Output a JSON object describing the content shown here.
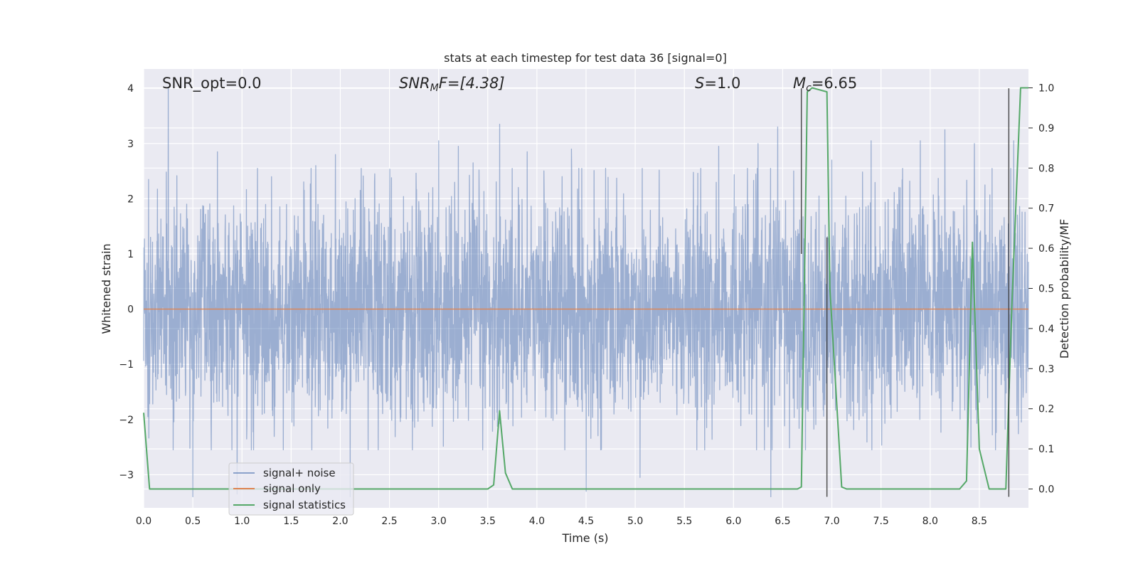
{
  "chart_data": {
    "type": "line",
    "title": "stats at each timestep for test data 36 [signal=0]",
    "xlabel": "Time (s)",
    "ylabel": "Whitened strain",
    "y2label": "Detection probability/MF",
    "xlim": [
      0.0,
      9.0
    ],
    "ylim": [
      -3.6,
      4.35
    ],
    "y2lim": [
      -0.047,
      1.047
    ],
    "grid": true,
    "legend_position": "lower-left",
    "x_ticks": [
      "0.0",
      "0.5",
      "1.0",
      "1.5",
      "2.0",
      "2.5",
      "3.0",
      "3.5",
      "4.0",
      "4.5",
      "5.0",
      "5.5",
      "6.0",
      "6.5",
      "7.0",
      "7.5",
      "8.0",
      "8.5"
    ],
    "y_ticks": [
      "4",
      "3",
      "2",
      "1",
      "0",
      "−1",
      "−2",
      "−3"
    ],
    "y2_ticks": [
      "1.0",
      "0.9",
      "0.8",
      "0.7",
      "0.6",
      "0.5",
      "0.4",
      "0.3",
      "0.2",
      "0.1",
      "0.0"
    ],
    "annotations": {
      "snr_opt": "SNR_opt=0.0",
      "snr_mf_sym": "SNR",
      "snr_mf_sub": "M",
      "snr_mf_rest": "F=[4.38]",
      "s_sym": "S",
      "s_rest": "=1.0",
      "mc_sym": "M",
      "mc_sub": "c",
      "mc_rest": "=6.65"
    },
    "series": [
      {
        "name": "signal+ noise",
        "color": "#4c72b0",
        "alpha": 0.5,
        "note": "whitened strain noise ~ N(0,1); peaks drawn below",
        "peaks": [
          [
            0.05,
            2.35
          ],
          [
            0.25,
            4.0
          ],
          [
            0.5,
            -3.4
          ],
          [
            0.75,
            2.85
          ],
          [
            0.95,
            -3.35
          ],
          [
            1.3,
            2.4
          ],
          [
            1.75,
            2.6
          ],
          [
            1.95,
            2.8
          ],
          [
            2.1,
            -3.4
          ],
          [
            2.35,
            2.45
          ],
          [
            3.0,
            3.05
          ],
          [
            3.2,
            2.95
          ],
          [
            3.35,
            2.65
          ],
          [
            3.62,
            3.35
          ],
          [
            3.9,
            2.85
          ],
          [
            4.35,
            2.9
          ],
          [
            4.5,
            -3.3
          ],
          [
            5.05,
            -3.05
          ],
          [
            5.85,
            2.95
          ],
          [
            6.25,
            3.0
          ],
          [
            6.38,
            -3.4
          ],
          [
            6.45,
            3.3
          ],
          [
            7.0,
            2.7
          ],
          [
            7.4,
            3.05
          ],
          [
            7.9,
            3.05
          ],
          [
            8.15,
            3.25
          ],
          [
            8.45,
            3.0
          ],
          [
            8.85,
            3.05
          ]
        ]
      },
      {
        "name": "signal only",
        "color": "#dd8452",
        "x": [
          0.0,
          9.0
        ],
        "y": [
          0.0,
          0.0
        ]
      },
      {
        "name": "signal statistics",
        "color": "#55a868",
        "axis": "right",
        "x": [
          0.0,
          0.06,
          0.15,
          3.5,
          3.56,
          3.62,
          3.68,
          3.75,
          3.8,
          6.65,
          6.69,
          6.75,
          6.8,
          6.95,
          6.98,
          7.1,
          7.15,
          8.3,
          8.37,
          8.43,
          8.5,
          8.6,
          8.77,
          8.83,
          8.92,
          9.0
        ],
        "y": [
          0.19,
          0.0,
          0.0,
          0.0,
          0.01,
          0.195,
          0.04,
          0.0,
          0.0,
          0.0,
          0.005,
          0.99,
          1.0,
          0.99,
          0.5,
          0.005,
          0.0,
          0.0,
          0.02,
          0.615,
          0.1,
          0.0,
          0.0,
          0.45,
          1.0,
          1.0
        ]
      }
    ],
    "vertical_markers": [
      {
        "x": 6.69,
        "y_top": 4.0,
        "y_bottom": 1.0,
        "color": "#333333"
      },
      {
        "x": 6.95,
        "y_top": 1.3,
        "y_bottom": -3.4,
        "color": "#333333"
      },
      {
        "x": 8.8,
        "y_top": 4.0,
        "y_bottom": -3.4,
        "color": "#333333"
      }
    ]
  },
  "legend": {
    "items": [
      {
        "label": "signal+ noise",
        "color": "#4c72b0"
      },
      {
        "label": "signal only",
        "color": "#dd8452"
      },
      {
        "label": "signal statistics",
        "color": "#55a868"
      }
    ]
  },
  "style": {
    "plot_bg": "#eaeaf2",
    "grid_color": "#ffffff",
    "text_color": "#262626"
  }
}
